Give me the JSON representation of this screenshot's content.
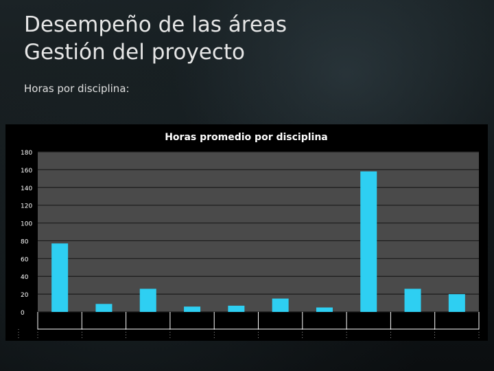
{
  "slide": {
    "title_line1": "Desempeño de las áreas",
    "title_line2": "Gestión del proyecto",
    "subtitle": "Horas por disciplina:"
  },
  "chart_data": {
    "type": "bar",
    "title": "Horas promedio por disciplina",
    "xlabel": "",
    "ylabel": "",
    "ylim": [
      0,
      180
    ],
    "yticks": [
      0,
      20,
      40,
      60,
      80,
      100,
      120,
      140,
      160,
      180
    ],
    "grid": true,
    "legend": "none",
    "categories": [
      "",
      "",
      "",
      "",
      "",
      "",
      "",
      "",
      "",
      ""
    ],
    "values": [
      77,
      9,
      26,
      6,
      7,
      15,
      5,
      158,
      26,
      20
    ],
    "colors": {
      "bar": "#2ecff2",
      "plot_bg": "#4a4a4a",
      "gridline": "#1a1a1a",
      "text": "#ffffff",
      "table_line": "#ffffff"
    }
  }
}
